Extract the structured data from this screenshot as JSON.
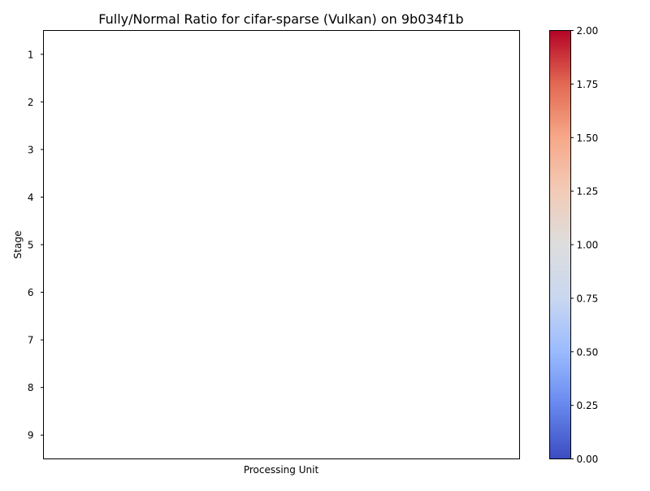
{
  "chart_data": {
    "type": "heatmap",
    "title": "Fully/Normal Ratio for cifar-sparse (Vulkan) on 9b034f1b",
    "xlabel": "Processing Unit",
    "ylabel": "Stage",
    "y_categories": [
      "1",
      "2",
      "3",
      "4",
      "5",
      "6",
      "7",
      "8",
      "9"
    ],
    "x_categories": [],
    "values": [],
    "grid": false,
    "colorbar": {
      "colormap": "coolwarm",
      "range": [
        0,
        2
      ],
      "ticks": [
        "0.00",
        "0.25",
        "0.50",
        "0.75",
        "1.00",
        "1.25",
        "1.50",
        "1.75",
        "2.00"
      ],
      "stops": [
        "#3b4cc0",
        "#6788ee",
        "#9abbff",
        "#c9d7f0",
        "#dddddd",
        "#f2cbb7",
        "#f7a889",
        "#e26952",
        "#b40426"
      ]
    }
  }
}
